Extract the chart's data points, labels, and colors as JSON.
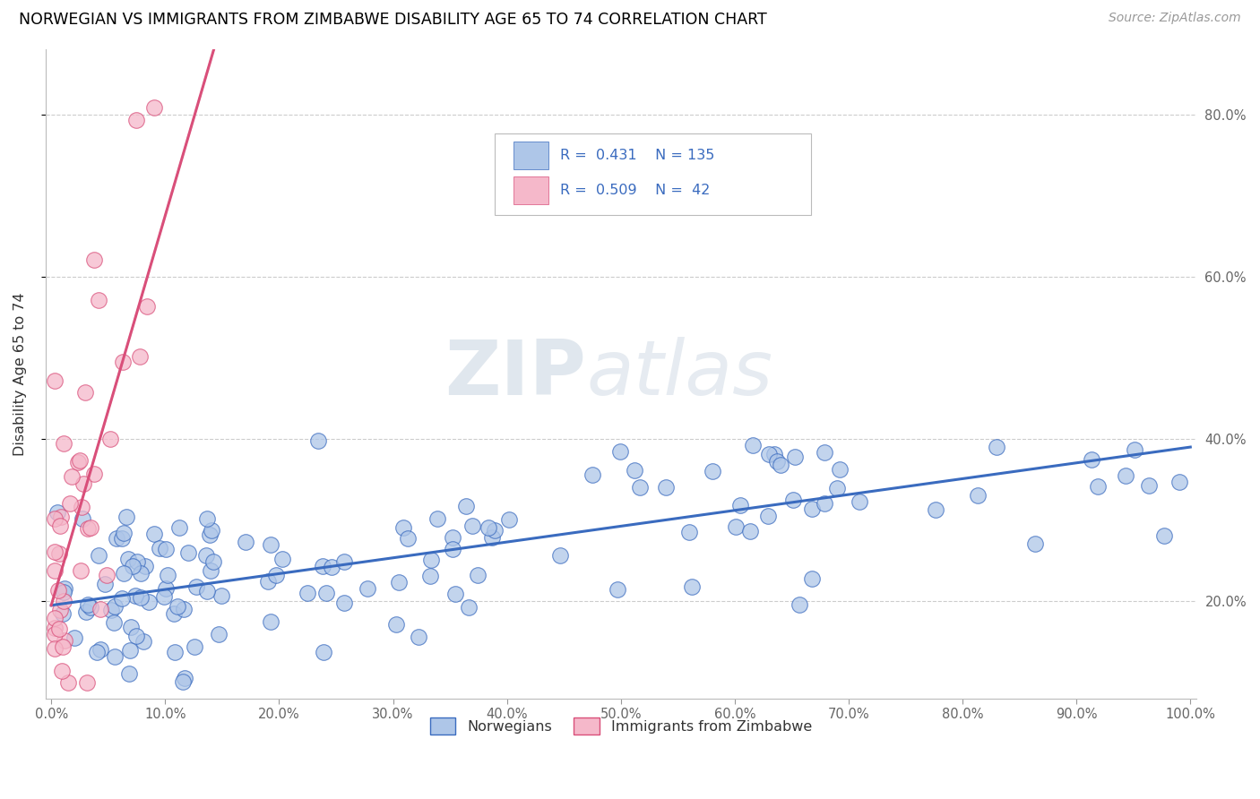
{
  "title": "NORWEGIAN VS IMMIGRANTS FROM ZIMBABWE DISABILITY AGE 65 TO 74 CORRELATION CHART",
  "source": "Source: ZipAtlas.com",
  "ylabel": "Disability Age 65 to 74",
  "legend_label_1": "Norwegians",
  "legend_label_2": "Immigrants from Zimbabwe",
  "R1": 0.431,
  "N1": 135,
  "R2": 0.509,
  "N2": 42,
  "color_blue": "#aec6e8",
  "color_pink": "#f5b8ca",
  "line_color_blue": "#3a6bbf",
  "line_color_pink": "#d94f7a",
  "nor_slope": 0.195,
  "nor_intercept": 0.195,
  "zim_slope": 4.8,
  "zim_intercept": 0.195,
  "xlim_min": -0.005,
  "xlim_max": 1.005,
  "ylim_min": 0.08,
  "ylim_max": 0.88,
  "y_ticks": [
    0.2,
    0.4,
    0.6,
    0.8
  ],
  "x_ticks": [
    0.0,
    0.1,
    0.2,
    0.3,
    0.4,
    0.5,
    0.6,
    0.7,
    0.8,
    0.9,
    1.0
  ]
}
